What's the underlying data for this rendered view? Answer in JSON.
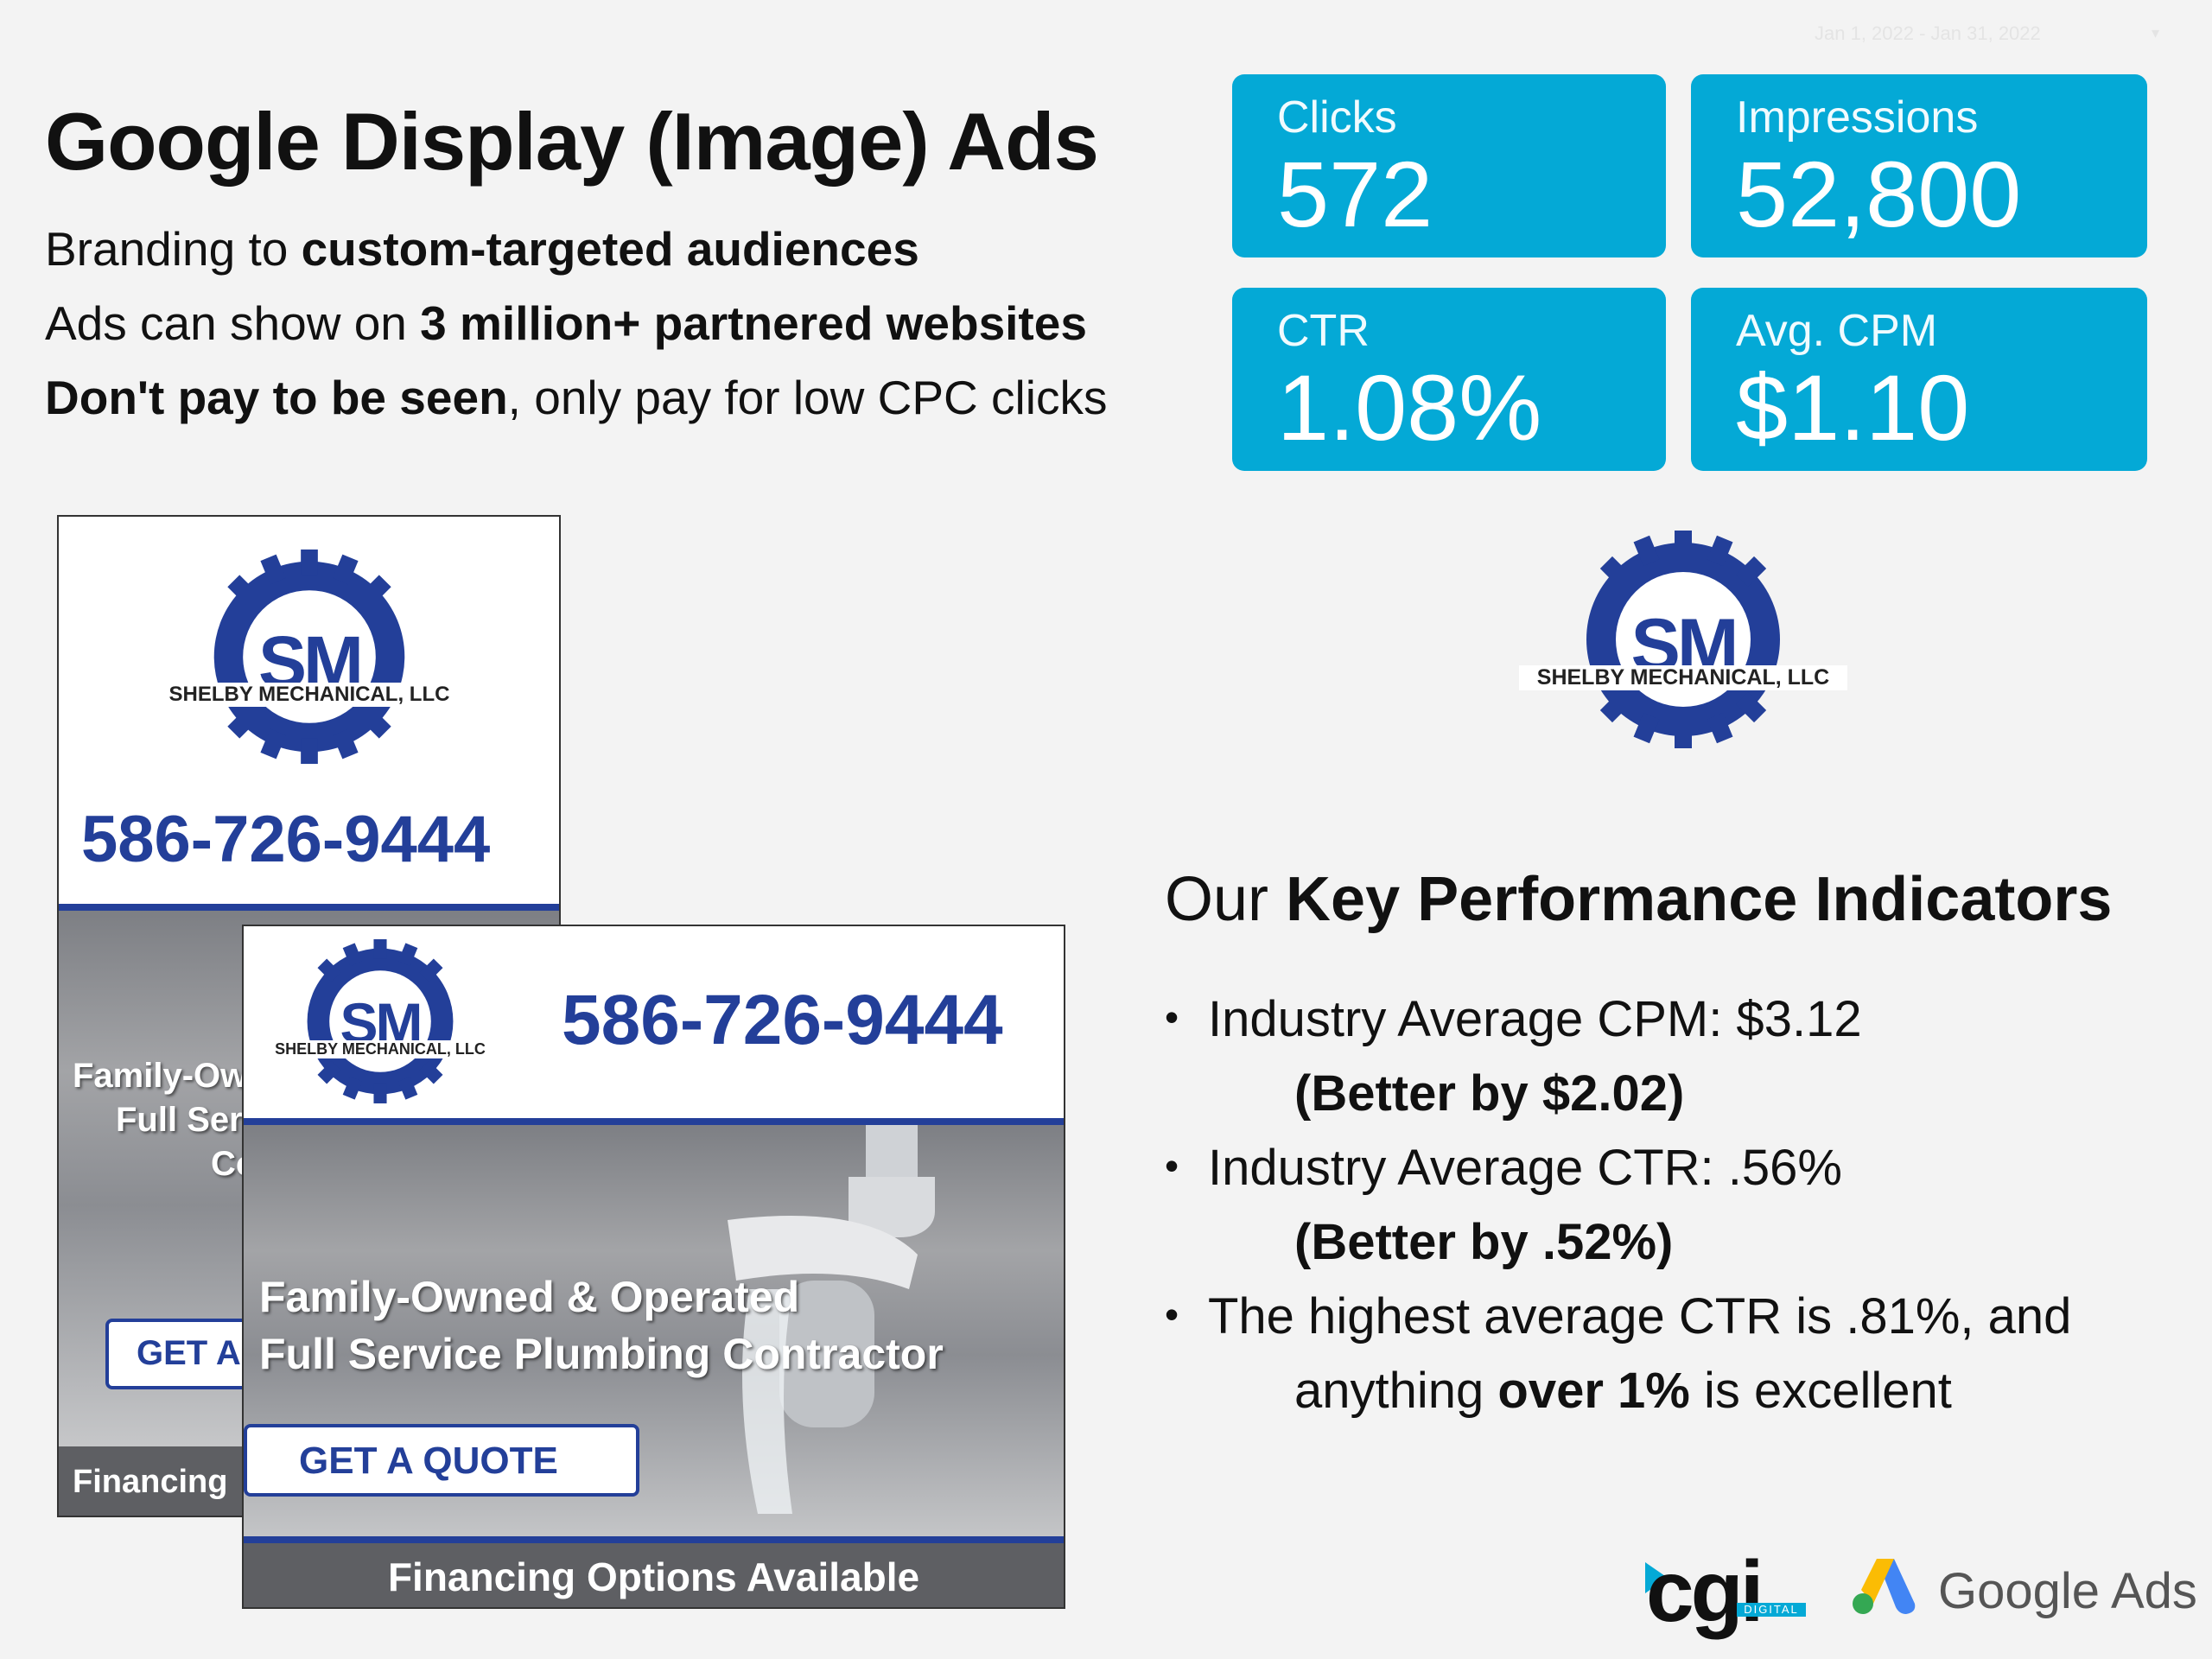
{
  "date_range": "Jan 1, 2022 - Jan 31, 2022",
  "title": "Google Display (Image) Ads",
  "subtitle_lines": [
    {
      "pre": "Branding to ",
      "bold": "custom-targeted audiences",
      "post": ""
    },
    {
      "pre": "Ads can show on ",
      "bold": "3 million+ partnered websites",
      "post": ""
    },
    {
      "pre": "",
      "bold": "Don't pay to be seen",
      "post": ", only pay for low CPC clicks"
    }
  ],
  "kpis": {
    "clicks": {
      "label": "Clicks",
      "value": "572"
    },
    "impressions": {
      "label": "Impressions",
      "value": "52,800"
    },
    "ctr": {
      "label": "CTR",
      "value": "1.08%"
    },
    "avg_cpm": {
      "label": "Avg. CPM",
      "value": "$1.10"
    }
  },
  "brand": {
    "monogram": "SM",
    "company": "SHELBY MECHANICAL, LLC",
    "color": "#233f99"
  },
  "ads": {
    "phone": "586-726-9444",
    "tagline_1": "Family-Owned & Operated",
    "tagline_2": "Full Service Plumbing Contractor",
    "cta": "GET A QUOTE",
    "footer": "Financing Options Available",
    "back_tagline_1": "Family-Ow",
    "back_tagline_2": "Full Ser",
    "back_tagline_3": "Co",
    "back_cta": "GET A",
    "back_footer": "Financing"
  },
  "kpi_section": {
    "heading_pre": "Our ",
    "heading_bold": "Key Performance Indicators",
    "bullets": [
      {
        "text": "Industry Average CPM: $3.12",
        "sub_bold": "(Better by $2.02)"
      },
      {
        "text": "Industry Average CTR: .56%",
        "sub_bold": "(Better by .52%)"
      },
      {
        "text": "The highest average CTR is .81%, and",
        "sub_pre": "anything ",
        "sub_bold": "over 1%",
        "sub_post": " is excellent"
      }
    ]
  },
  "footer_logos": {
    "cgi": "cgi",
    "cgi_sub": "DIGITAL",
    "google_ads": "Google Ads"
  },
  "colors": {
    "kpi_card": "#04a9d6",
    "brand_blue": "#233f99",
    "background": "#f3f3f3"
  }
}
